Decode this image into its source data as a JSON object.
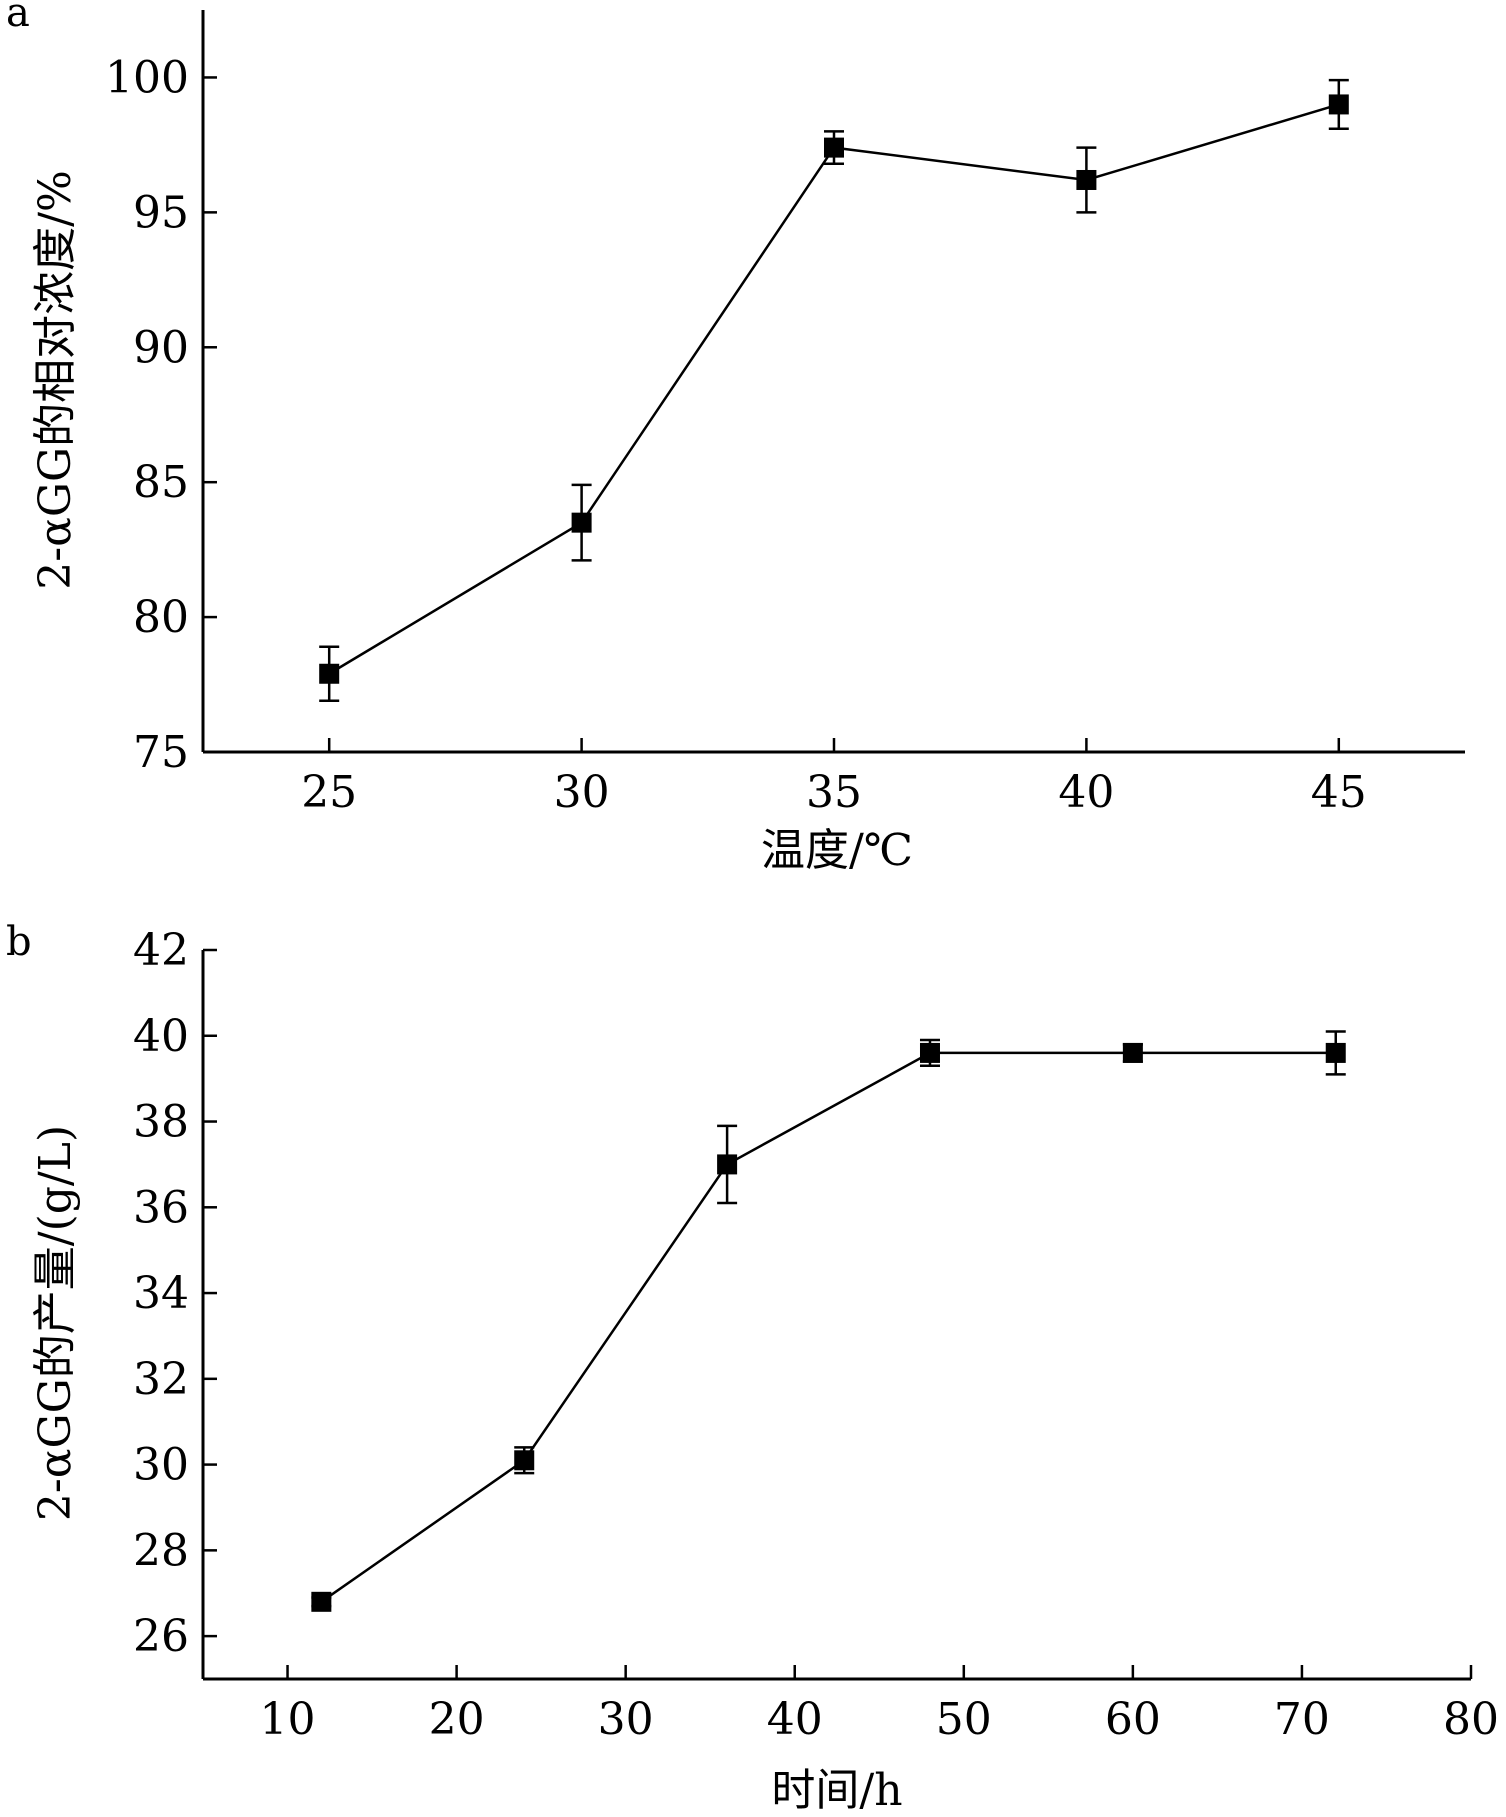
{
  "chart_data": [
    {
      "panel": "a",
      "type": "line",
      "x": [
        25,
        30,
        35,
        40,
        45
      ],
      "series": [
        {
          "values": [
            77.9,
            83.5,
            97.4,
            96.2,
            99.0
          ],
          "errors": [
            1.0,
            1.4,
            0.6,
            1.2,
            0.9
          ]
        }
      ],
      "xlabel": "温度/℃",
      "ylabel": "2-αGG的相对浓度/%",
      "xticks": [
        25,
        30,
        35,
        40,
        45
      ],
      "yticks": [
        75,
        80,
        85,
        90,
        95,
        100
      ],
      "xlim": [
        22.5,
        47.5
      ],
      "ylim": [
        75,
        102.5
      ],
      "grid": false,
      "marker": "square"
    },
    {
      "panel": "b",
      "type": "line",
      "x": [
        12,
        24,
        36,
        48,
        60,
        72
      ],
      "series": [
        {
          "values": [
            26.8,
            30.1,
            37.0,
            39.6,
            39.6,
            39.6
          ],
          "errors": [
            0.1,
            0.3,
            0.9,
            0.3,
            0.2,
            0.5
          ]
        }
      ],
      "xlabel": "时间/h",
      "ylabel": "2-αGG的产量/(g/L)",
      "xticks": [
        10,
        20,
        30,
        40,
        50,
        60,
        70,
        80
      ],
      "yticks": [
        26,
        28,
        30,
        32,
        34,
        36,
        38,
        40,
        42
      ],
      "xlim": [
        5,
        80
      ],
      "ylim": [
        25,
        42
      ],
      "grid": false,
      "marker": "square"
    }
  ]
}
